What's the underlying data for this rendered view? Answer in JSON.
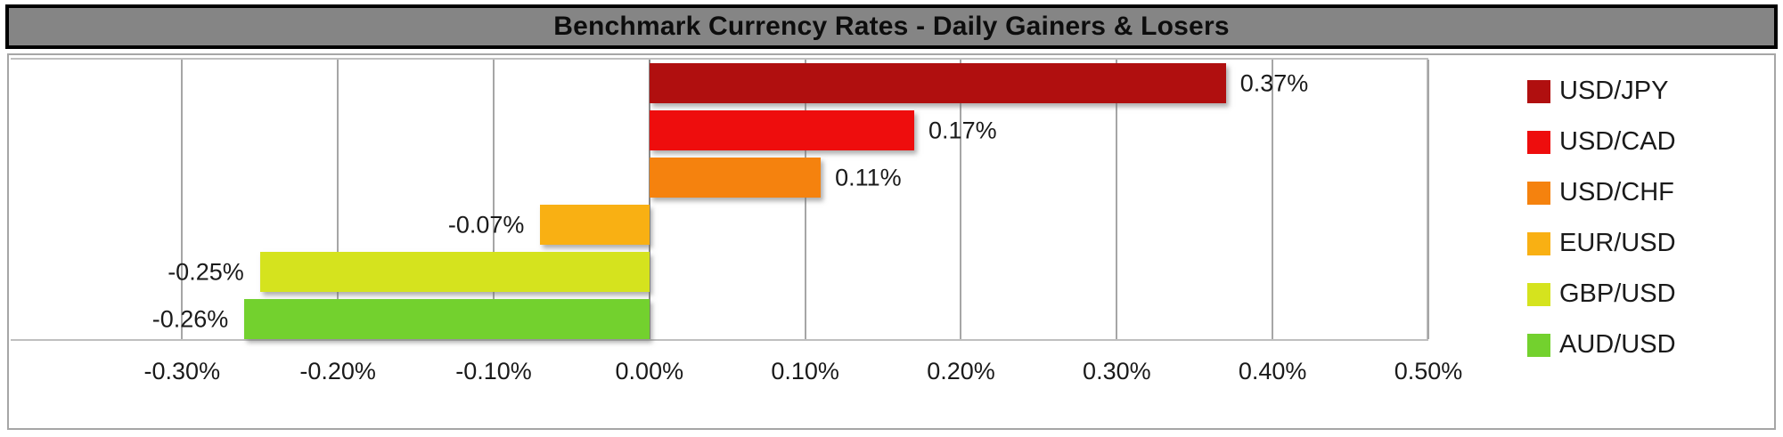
{
  "title": "Benchmark Currency Rates - Daily Gainers & Losers",
  "colors": {
    "title_bar_bg": "#858585",
    "title_text": "#0d0d0d",
    "gridline": "#a6a6a6",
    "chart_border": "#a6a6a6"
  },
  "chart_data": {
    "type": "bar",
    "orientation": "horizontal",
    "title": "Benchmark Currency Rates - Daily Gainers & Losers",
    "categories": [
      "USD/JPY",
      "USD/CAD",
      "USD/CHF",
      "EUR/USD",
      "GBP/USD",
      "AUD/USD"
    ],
    "values": [
      0.37,
      0.17,
      0.11,
      -0.07,
      -0.25,
      -0.26
    ],
    "data_labels": [
      "0.37%",
      "0.17%",
      "0.11%",
      "-0.07%",
      "-0.25%",
      "-0.26%"
    ],
    "bar_colors": [
      "#b00f0f",
      "#ee0d0d",
      "#f5820e",
      "#f9b013",
      "#d5e31e",
      "#73d12e"
    ],
    "x_tick_labels": [
      "-0.30%",
      "-0.20%",
      "-0.10%",
      "0.00%",
      "0.10%",
      "0.20%",
      "0.30%",
      "0.40%",
      "0.50%"
    ],
    "x_tick_values": [
      -0.3,
      -0.2,
      -0.1,
      0.0,
      0.1,
      0.2,
      0.3,
      0.4,
      0.5
    ],
    "xlim": [
      -0.41,
      0.5
    ],
    "xlabel": "",
    "ylabel": "",
    "grid": "vertical",
    "legend_position": "right",
    "legend": [
      "USD/JPY",
      "USD/CAD",
      "USD/CHF",
      "EUR/USD",
      "GBP/USD",
      "AUD/USD"
    ]
  }
}
